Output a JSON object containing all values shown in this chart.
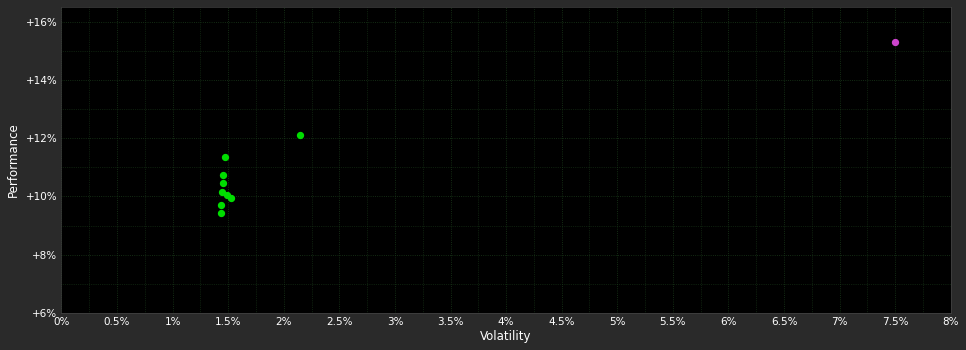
{
  "background_color": "#2a2a2a",
  "plot_bg_color": "#000000",
  "grid_color": "#1a3a1a",
  "xlabel": "Volatility",
  "ylabel": "Performance",
  "xlim": [
    0.0,
    0.08
  ],
  "ylim": [
    0.06,
    0.165
  ],
  "xticks": [
    0.0,
    0.005,
    0.01,
    0.015,
    0.02,
    0.025,
    0.03,
    0.035,
    0.04,
    0.045,
    0.05,
    0.055,
    0.06,
    0.065,
    0.07,
    0.075,
    0.08
  ],
  "yticks": [
    0.06,
    0.08,
    0.1,
    0.12,
    0.14,
    0.16
  ],
  "green_points": [
    [
      0.0215,
      0.121
    ],
    [
      0.01475,
      0.1135
    ],
    [
      0.01455,
      0.1075
    ],
    [
      0.01455,
      0.1045
    ],
    [
      0.01445,
      0.1015
    ],
    [
      0.01485,
      0.1005
    ],
    [
      0.01525,
      0.0995
    ],
    [
      0.01435,
      0.097
    ],
    [
      0.01435,
      0.0945
    ]
  ],
  "magenta_points": [
    [
      0.075,
      0.153
    ]
  ],
  "green_color": "#00dd00",
  "magenta_color": "#cc44cc",
  "point_size": 18,
  "tick_color": "#ffffff",
  "tick_fontsize": 7.5,
  "label_fontsize": 8.5,
  "label_color": "#ffffff",
  "spine_color": "#444444"
}
